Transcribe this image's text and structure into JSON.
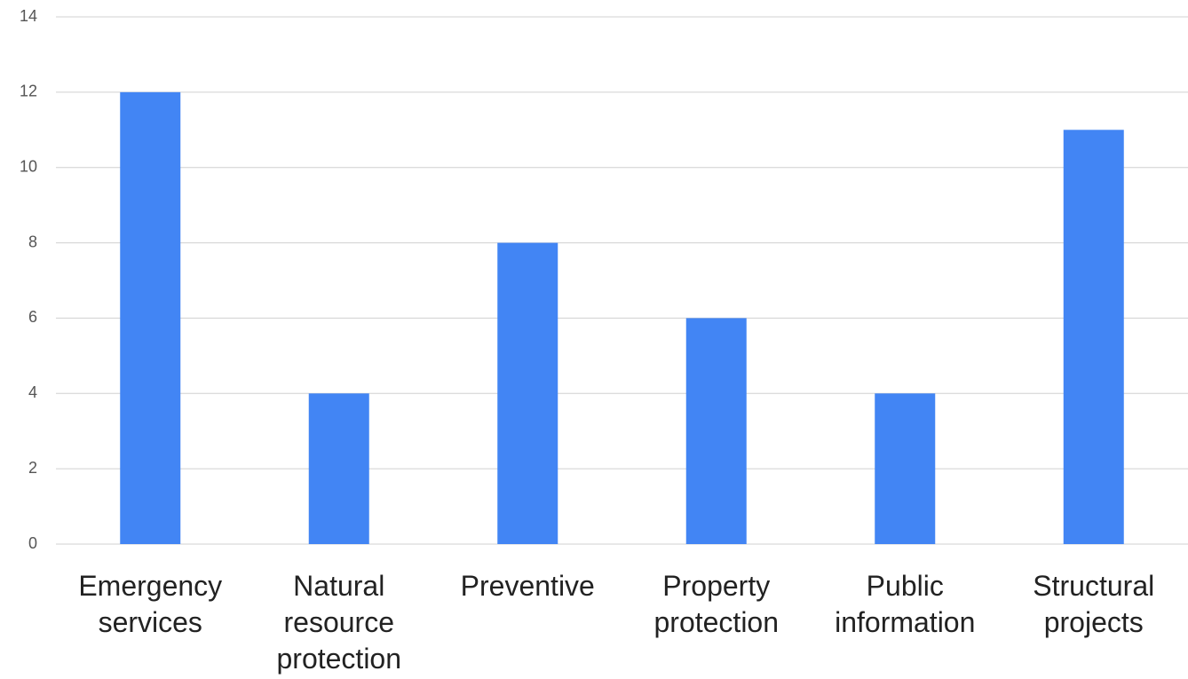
{
  "chart_data": {
    "type": "bar",
    "categories": [
      "Emergency services",
      "Natural resource protection",
      "Preventive",
      "Property protection",
      "Public information",
      "Structural projects"
    ],
    "values": [
      12,
      4,
      8,
      6,
      4,
      11
    ],
    "color": "#4285f4",
    "ylim": [
      0,
      14
    ],
    "yticks": [
      0,
      2,
      4,
      6,
      8,
      10,
      12,
      14
    ],
    "grid": true
  }
}
